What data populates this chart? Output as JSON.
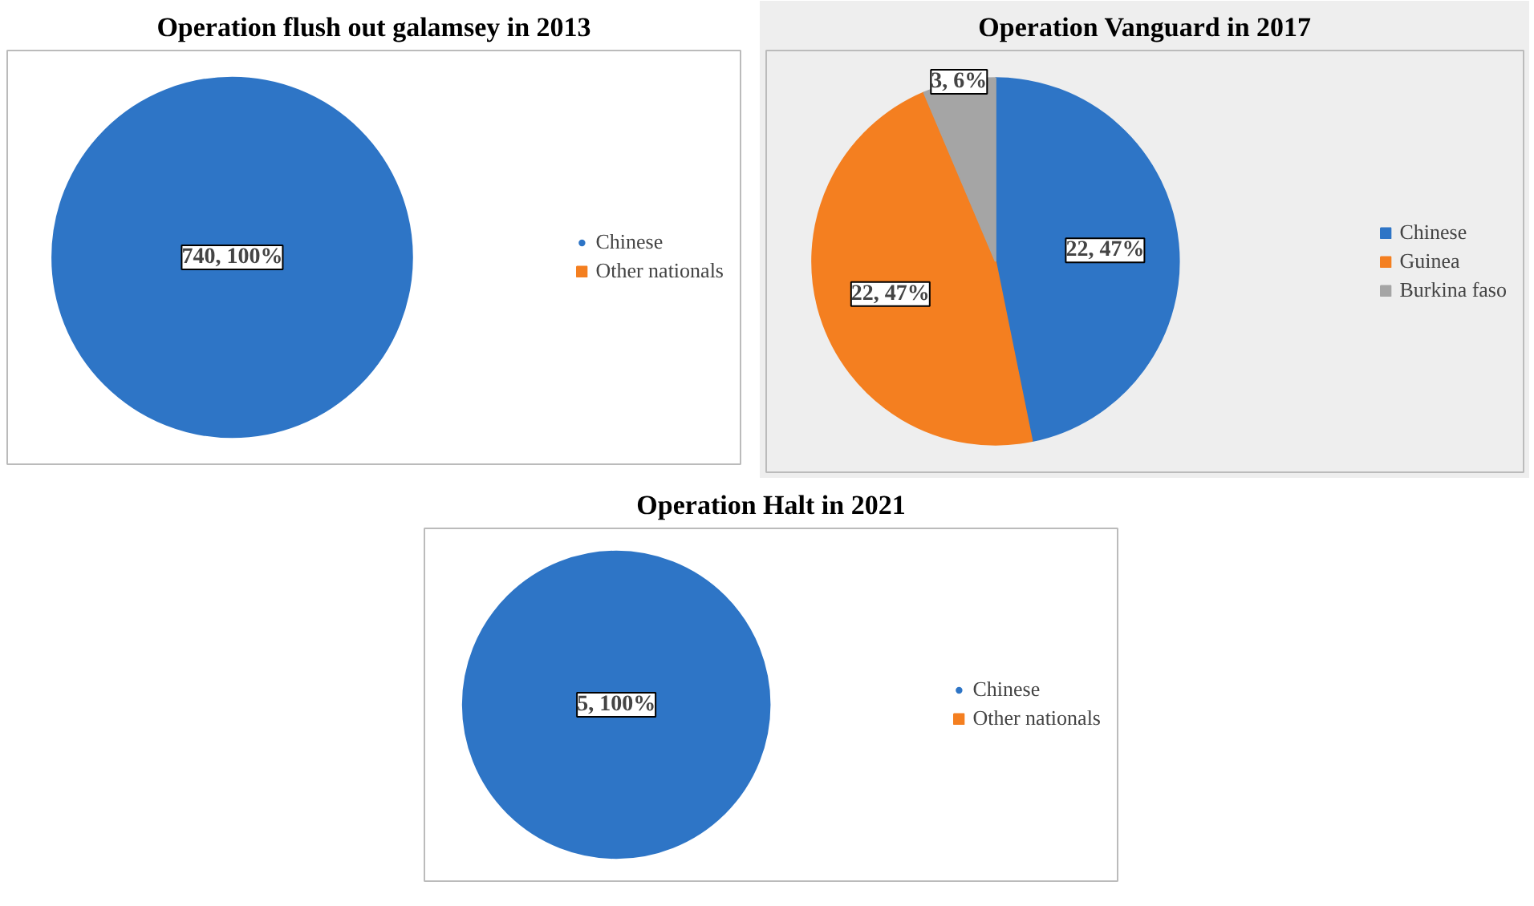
{
  "chart_data": [
    {
      "type": "pie",
      "title": "Operation flush out galamsey in 2013",
      "categories": [
        "Chinese",
        "Other nationals"
      ],
      "values": [
        740,
        0
      ],
      "colors": [
        "#2e75c6",
        "#f47f20"
      ],
      "value_labels": [
        "740, 100%",
        null
      ],
      "legend": "right"
    },
    {
      "type": "pie",
      "title": "Operation Vanguard in 2017",
      "categories": [
        "Chinese",
        "Guinea",
        "Burkina faso"
      ],
      "values": [
        22,
        22,
        3
      ],
      "colors": [
        "#2e75c6",
        "#f47f20",
        "#a5a5a5"
      ],
      "value_labels": [
        "22, 47%",
        "22, 47%",
        "3, 6%"
      ],
      "legend": "right"
    },
    {
      "type": "pie",
      "title": "Operation Halt in 2021",
      "categories": [
        "Chinese",
        "Other nationals"
      ],
      "values": [
        5,
        0
      ],
      "colors": [
        "#2e75c6",
        "#f47f20"
      ],
      "value_labels": [
        "5, 100%",
        null
      ],
      "legend": "right"
    }
  ]
}
